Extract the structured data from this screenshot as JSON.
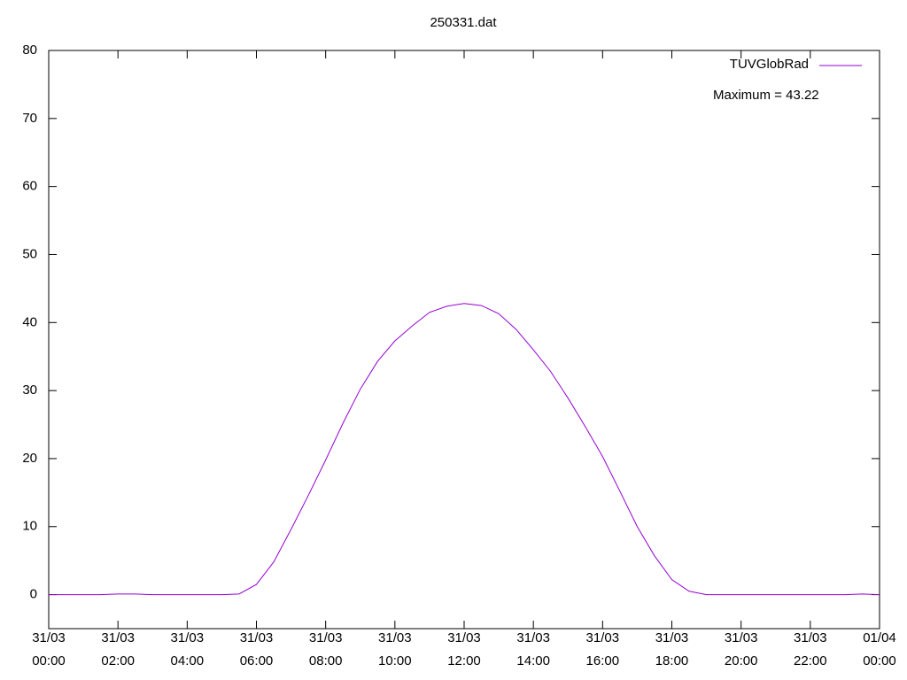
{
  "chart_data": {
    "type": "line",
    "title": "250331.dat",
    "x": [
      0,
      0.5,
      1,
      1.5,
      2,
      2.5,
      3,
      3.5,
      4,
      4.5,
      5,
      5.5,
      6,
      6.5,
      7,
      7.5,
      8,
      8.5,
      9,
      9.5,
      10,
      10.5,
      11,
      11.5,
      12,
      12.5,
      13,
      13.5,
      14,
      14.5,
      15,
      15.5,
      16,
      16.5,
      17,
      17.5,
      18,
      18.5,
      19,
      19.5,
      20,
      20.5,
      21,
      21.5,
      22,
      22.5,
      23,
      23.5,
      24
    ],
    "series": [
      {
        "name": "TUVGlobRad",
        "color": "#9400d3",
        "values": [
          0,
          0,
          0,
          0,
          0.1,
          0.1,
          0,
          0,
          0,
          0,
          0,
          0.1,
          1.5,
          4.8,
          9.6,
          14.6,
          19.8,
          25.2,
          30.2,
          34.3,
          37.3,
          39.5,
          41.5,
          42.4,
          42.8,
          42.5,
          41.3,
          39,
          36,
          32.8,
          28.9,
          24.7,
          20.3,
          15.2,
          10,
          5.7,
          2.2,
          0.5,
          0,
          0,
          0,
          0,
          0,
          0,
          0,
          0,
          0,
          0.1,
          0
        ]
      }
    ],
    "annotation": "Maximum = 43.22",
    "xlim": [
      0,
      24
    ],
    "xticks": [
      {
        "value": 0,
        "label": "31/03 00:00"
      },
      {
        "value": 2,
        "label": "31/03 02:00"
      },
      {
        "value": 4,
        "label": "31/03 04:00"
      },
      {
        "value": 6,
        "label": "31/03 06:00"
      },
      {
        "value": 8,
        "label": "31/03 08:00"
      },
      {
        "value": 10,
        "label": "31/03 10:00"
      },
      {
        "value": 12,
        "label": "31/03 12:00"
      },
      {
        "value": 14,
        "label": "31/03 14:00"
      },
      {
        "value": 16,
        "label": "31/03 16:00"
      },
      {
        "value": 18,
        "label": "31/03 18:00"
      },
      {
        "value": 20,
        "label": "31/03 20:00"
      },
      {
        "value": 22,
        "label": "31/03 22:00"
      },
      {
        "value": 24,
        "label": "01/04 00:00"
      }
    ],
    "ylim": [
      -5,
      80
    ],
    "yticks": [
      0,
      10,
      20,
      30,
      40,
      50,
      60,
      70,
      80
    ],
    "grid": false,
    "legend": "top-right"
  }
}
